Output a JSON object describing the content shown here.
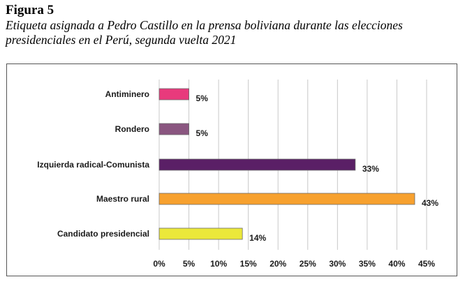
{
  "figure": {
    "number": "Figura 5",
    "caption": "Etiqueta asignada a Pedro Castillo en la prensa boliviana durante las elecciones presidenciales en el  Perú, segunda vuelta 2021"
  },
  "chart_data": {
    "type": "bar",
    "orientation": "horizontal",
    "categories": [
      "Antiminero",
      "Rondero",
      "Izquierda radical-Comunista",
      "Maestro rural",
      "Candidato presidencial"
    ],
    "values": [
      5,
      5,
      33,
      43,
      14
    ],
    "value_labels": [
      "5%",
      "5%",
      "33%",
      "43%",
      "14%"
    ],
    "colors": [
      "#e83a7c",
      "#8a5680",
      "#5a1f66",
      "#f7a12f",
      "#ebe83a"
    ],
    "xlim": [
      0,
      45
    ],
    "xticks": [
      0,
      5,
      10,
      15,
      20,
      25,
      30,
      35,
      40,
      45
    ],
    "xtick_labels": [
      "0%",
      "5%",
      "10%",
      "15%",
      "20%",
      "25%",
      "30%",
      "35%",
      "40%",
      "45%"
    ],
    "grid": true,
    "legend": false
  }
}
